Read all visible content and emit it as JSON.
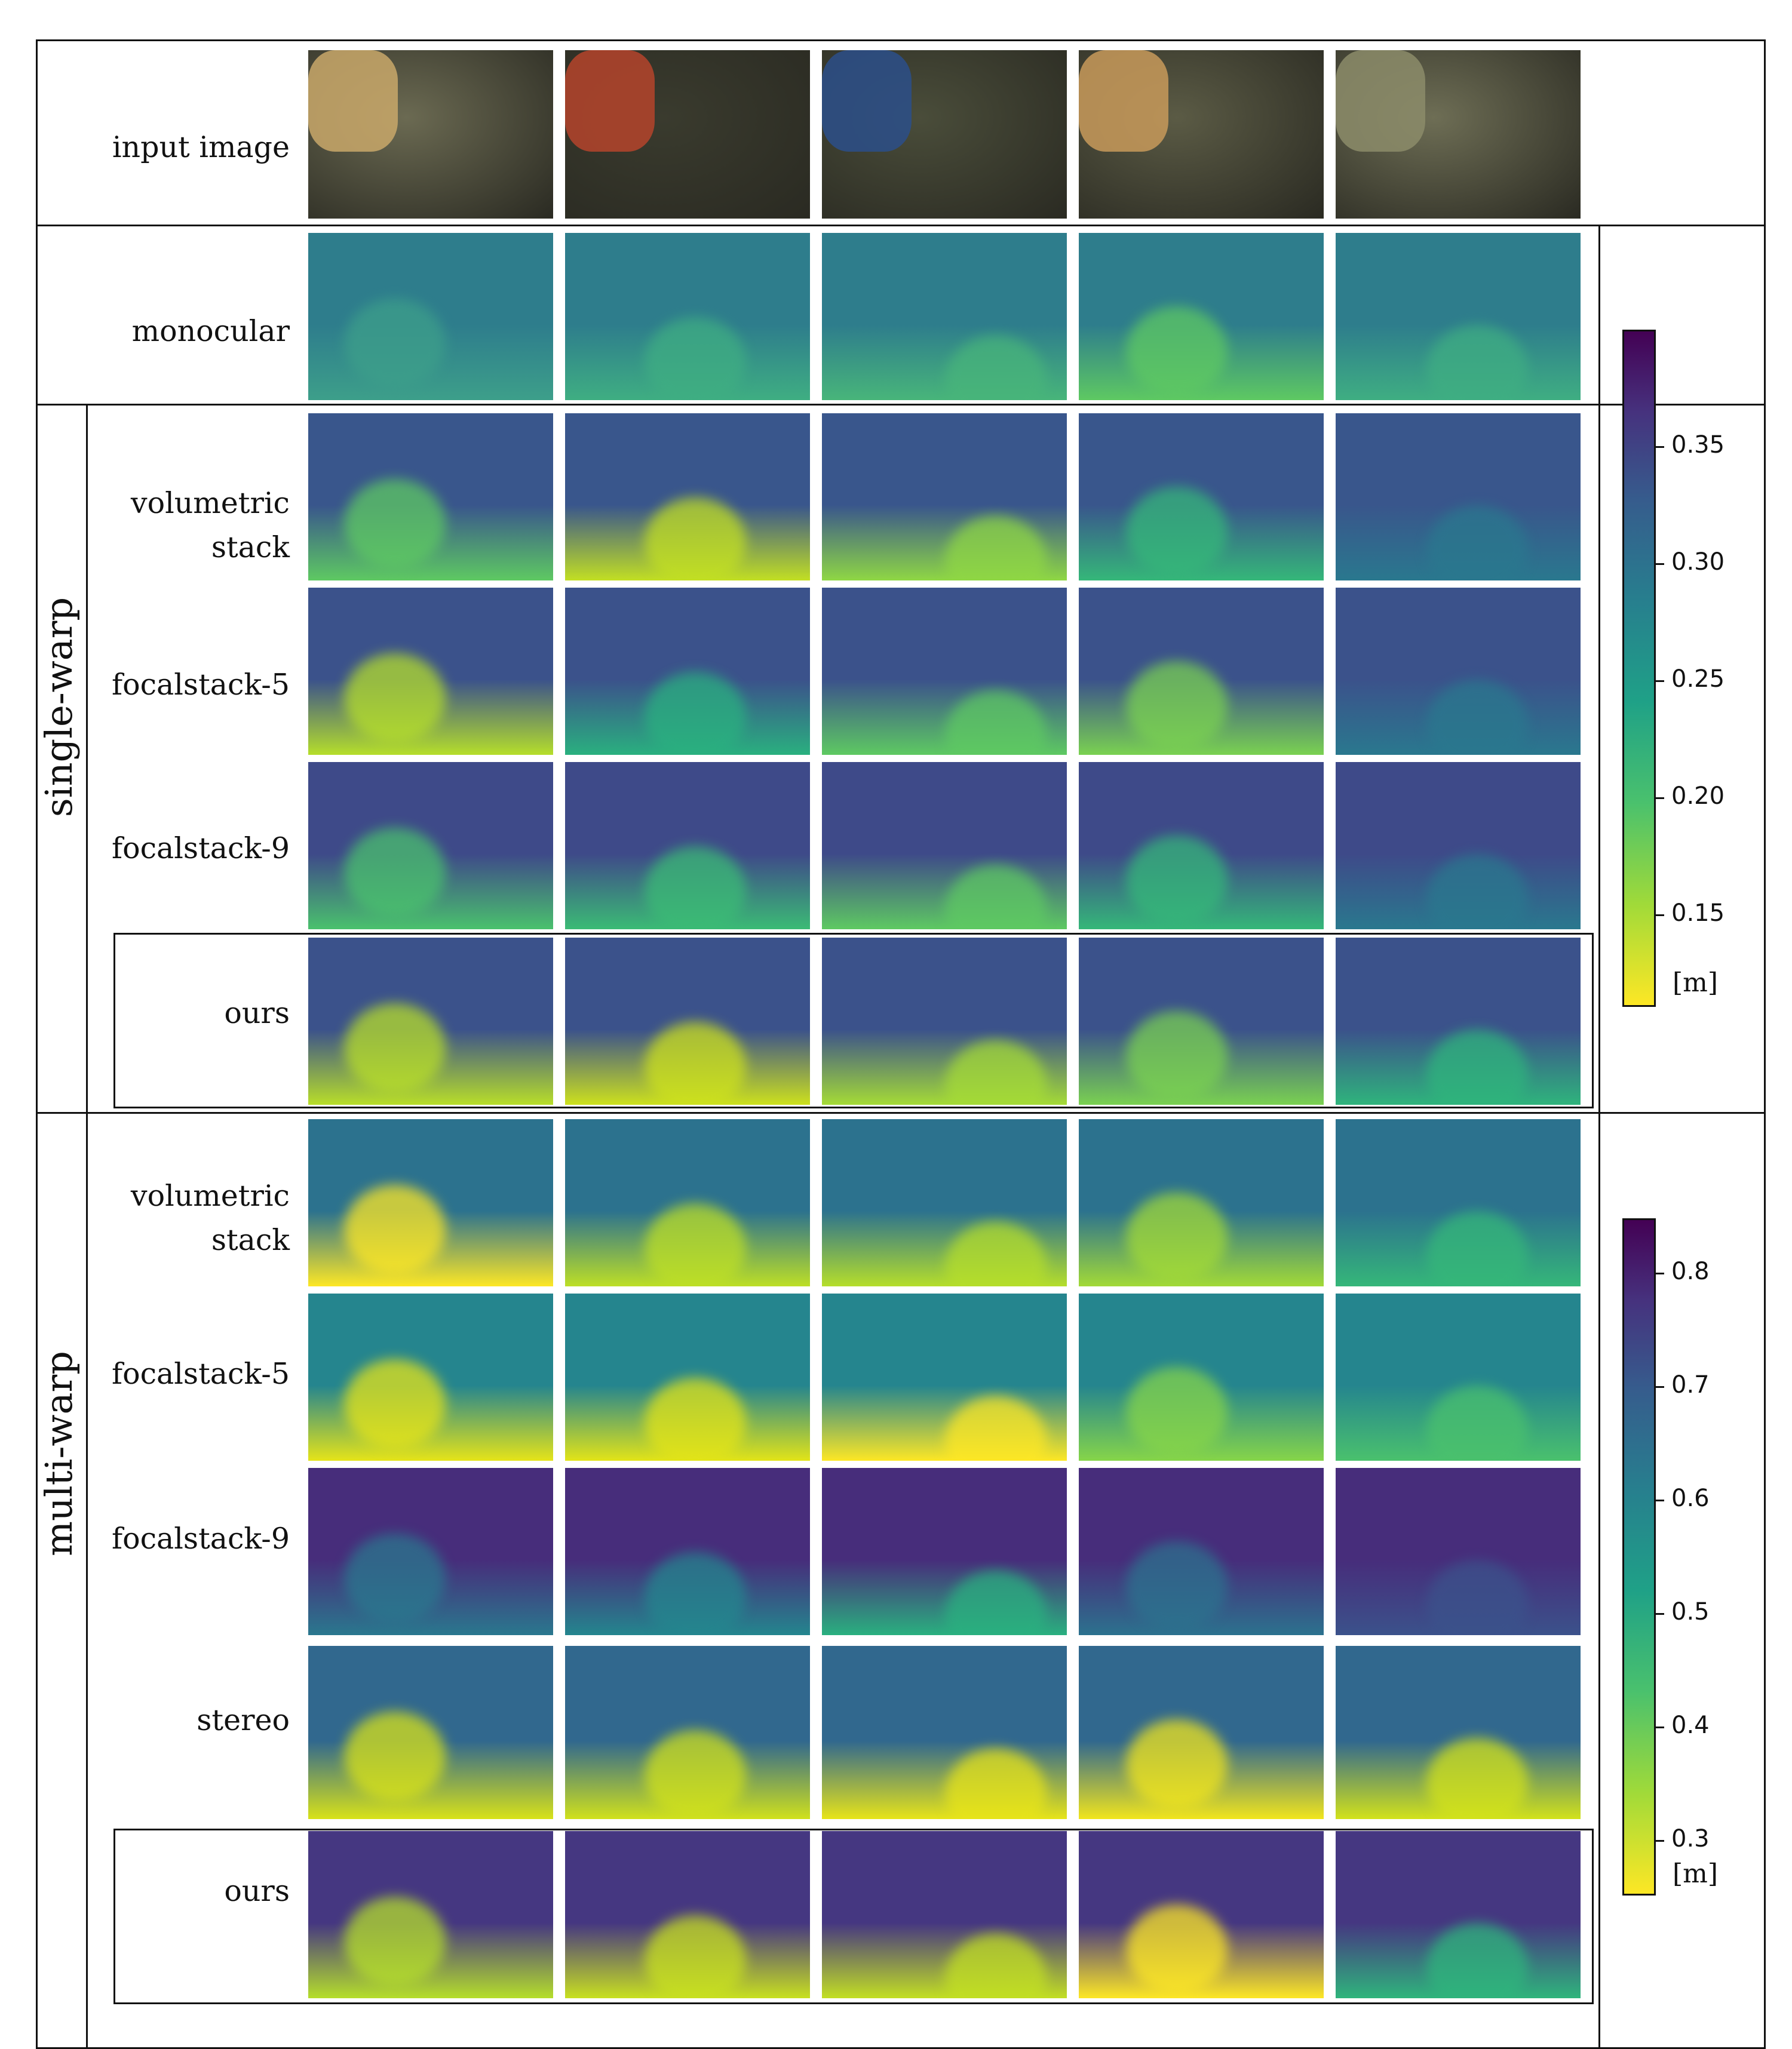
{
  "figure": {
    "row_labels": {
      "input": "input image",
      "monocular": "monocular",
      "sw_volumetric": "volumetric\nstack",
      "sw_fs5": "focalstack-5",
      "sw_fs9": "focalstack-9",
      "sw_ours": "ours",
      "mw_volumetric": "volumetric\nstack",
      "mw_fs5": "focalstack-5",
      "mw_fs9": "focalstack-9",
      "mw_stereo": "stereo",
      "mw_ours": "ours"
    },
    "group_labels": {
      "single": "single-warp",
      "multi": "multi-warp"
    },
    "colorbar_top": {
      "ticks": [
        "0.35",
        "0.30",
        "0.25",
        "0.20",
        "0.15"
      ],
      "unit": "[m]"
    },
    "colorbar_bottom": {
      "ticks": [
        "0.8",
        "0.7",
        "0.6",
        "0.5",
        "0.4",
        "0.3"
      ],
      "unit": "[m]"
    },
    "colors": {
      "viridis_low": "#fde725",
      "viridis_mid": "#21918c",
      "viridis_high": "#440154"
    }
  }
}
